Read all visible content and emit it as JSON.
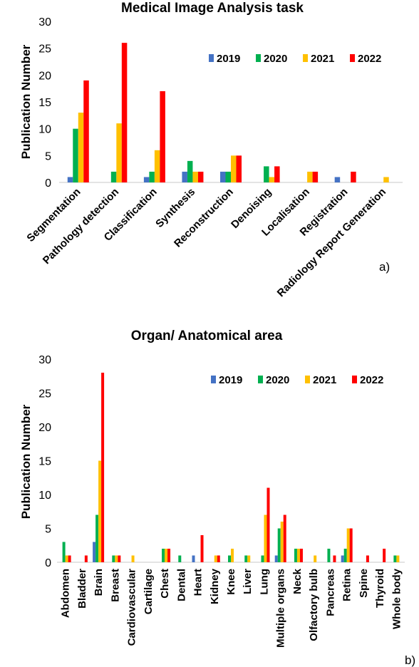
{
  "colors": {
    "2019": "#4472C4",
    "2020": "#00B050",
    "2021": "#FFC000",
    "2022": "#FF0000"
  },
  "chart_data": [
    {
      "type": "bar",
      "title": "Medical Image Analysis task",
      "ylabel": "Publication Number",
      "xlabel": "",
      "panel_label": "a)",
      "ylim": [
        0,
        30
      ],
      "yticks": [
        0,
        5,
        10,
        15,
        20,
        25,
        30
      ],
      "legend_position": "top-right",
      "categories": [
        "Segmentation",
        "Pathology detection",
        "Classification",
        "Synthesis",
        "Reconstruction",
        "Denoising",
        "Localisation",
        "Registration",
        "Radiology Report Generation"
      ],
      "series": [
        {
          "name": "2019",
          "values": [
            1,
            0,
            1,
            2,
            2,
            0,
            0,
            1,
            0
          ]
        },
        {
          "name": "2020",
          "values": [
            10,
            2,
            2,
            4,
            2,
            3,
            0,
            0,
            0
          ]
        },
        {
          "name": "2021",
          "values": [
            13,
            11,
            6,
            2,
            5,
            1,
            2,
            0,
            1
          ]
        },
        {
          "name": "2022",
          "values": [
            19,
            26,
            17,
            2,
            5,
            3,
            2,
            2,
            0
          ]
        }
      ]
    },
    {
      "type": "bar",
      "title": "Organ/ Anatomical area",
      "ylabel": "Publication Number",
      "xlabel": "",
      "panel_label": "b)",
      "ylim": [
        0,
        30
      ],
      "yticks": [
        0,
        5,
        10,
        15,
        20,
        25,
        30
      ],
      "legend_position": "top-right",
      "categories": [
        "Abdomen",
        "Bladder",
        "Brain",
        "Breast",
        "Cardiovascular",
        "Cartilage",
        "Chest",
        "Dental",
        "Heart",
        "Kidney",
        "Knee",
        "Liver",
        "Lung",
        "Multiple organs",
        "Neck",
        "Olfactory bulb",
        "Pancreas",
        "Retina",
        "Spine",
        "Thyroid",
        "Whole body"
      ],
      "series": [
        {
          "name": "2019",
          "values": [
            0,
            0,
            3,
            0,
            0,
            0,
            0,
            0,
            1,
            0,
            0,
            0,
            0,
            1,
            0,
            0,
            0,
            1,
            0,
            0,
            0
          ]
        },
        {
          "name": "2020",
          "values": [
            3,
            0,
            7,
            1,
            0,
            0,
            2,
            1,
            0,
            0,
            1,
            1,
            1,
            5,
            2,
            0,
            2,
            2,
            0,
            0,
            1
          ]
        },
        {
          "name": "2021",
          "values": [
            1,
            0,
            15,
            1,
            1,
            0,
            2,
            0,
            0,
            1,
            2,
            1,
            7,
            6,
            2,
            1,
            0,
            5,
            0,
            0,
            1
          ]
        },
        {
          "name": "2022",
          "values": [
            1,
            1,
            28,
            1,
            0,
            0,
            2,
            0,
            4,
            1,
            0,
            0,
            11,
            7,
            2,
            0,
            1,
            5,
            1,
            2,
            0
          ]
        }
      ]
    }
  ]
}
